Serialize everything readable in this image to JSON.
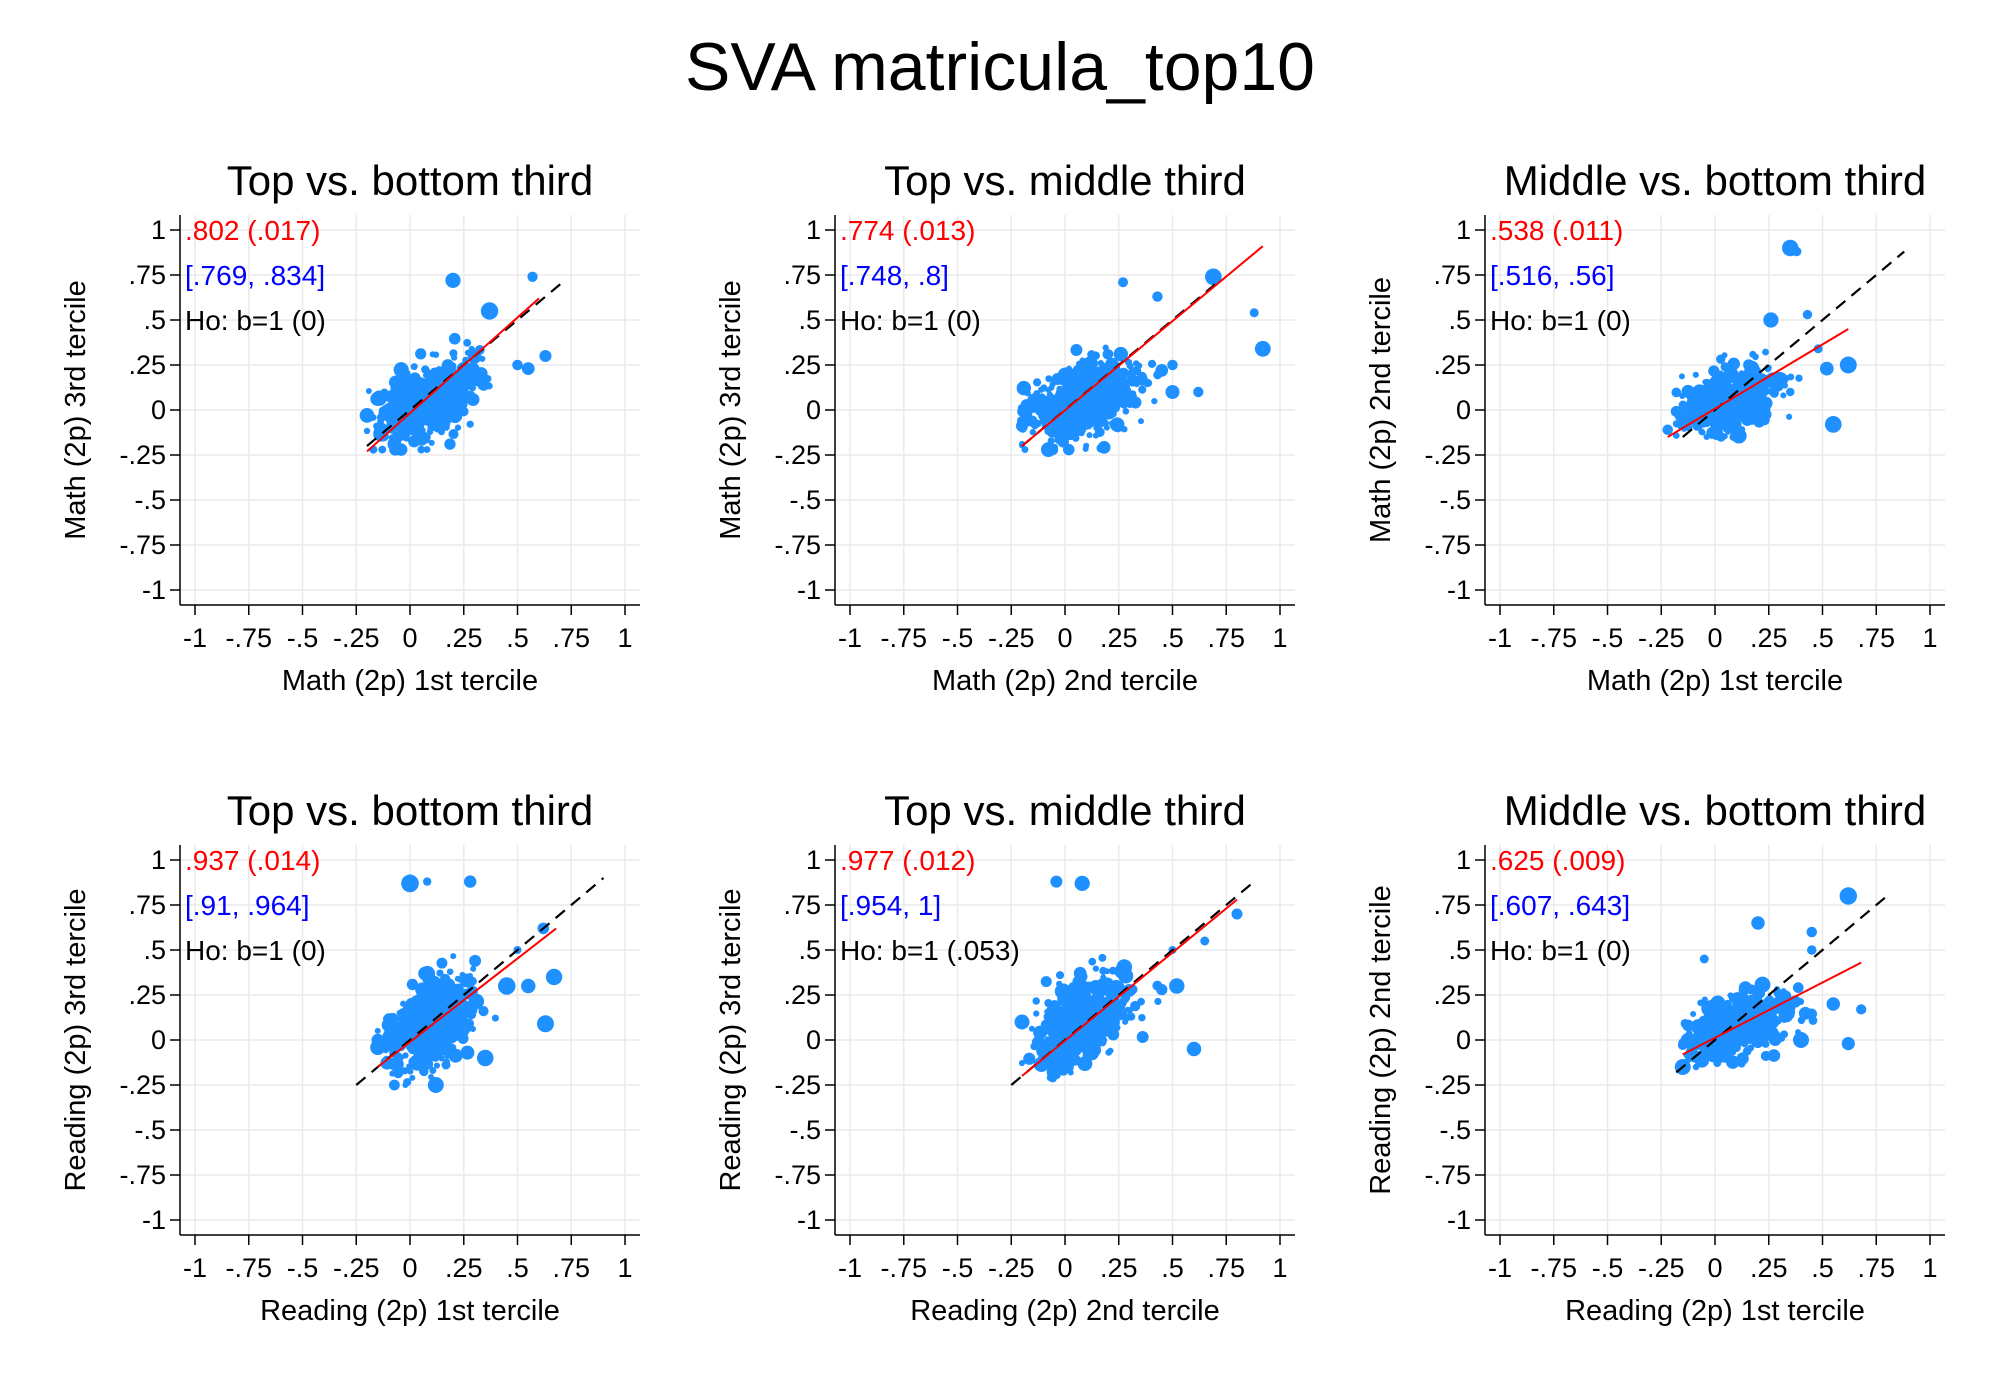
{
  "figure_title": "SVA matricula_top10",
  "colors": {
    "points": "#1e90ff",
    "fit_line": "#ff0000",
    "reference_line": "#000000",
    "coef_text": "#ff0000",
    "ci_text": "#0000ff",
    "test_text": "#000000",
    "grid": "#eaeaea"
  },
  "chart_data": [
    {
      "type": "scatter",
      "title": "Top vs. bottom third",
      "xlabel": "Math (2p) 1st tercile",
      "ylabel": "Math (2p) 3rd tercile",
      "xlim": [
        -1,
        1
      ],
      "ylim": [
        -1,
        1
      ],
      "xticks": [
        "-1",
        "-.75",
        "-.5",
        "-.25",
        "0",
        ".25",
        ".5",
        ".75",
        "1"
      ],
      "yticks": [
        "1",
        ".75",
        ".5",
        ".25",
        "0",
        "-.25",
        "-.5",
        "-.75",
        "-1"
      ],
      "annotations": {
        "coef": ".802 (.017)",
        "ci": "[.769, .834]",
        "test": "Ho: b=1 (0)"
      },
      "cloud": {
        "cx": 0.08,
        "cy": 0.05,
        "sx": 0.11,
        "sy": 0.1,
        "n": 520,
        "xmin": -0.2,
        "xmax": 0.6,
        "ymin": -0.22,
        "ymax": 0.55,
        "seed": 11,
        "slope": 0.8
      },
      "extra_points": [
        [
          -0.2,
          -0.03
        ],
        [
          0.37,
          0.55
        ],
        [
          0.57,
          0.74
        ],
        [
          0.63,
          0.3
        ],
        [
          0.2,
          0.72
        ],
        [
          0.5,
          0.25
        ],
        [
          0.55,
          0.23
        ]
      ],
      "fit_line": [
        [
          -0.2,
          -0.23
        ],
        [
          0.6,
          0.62
        ]
      ],
      "reference_line": [
        [
          -0.2,
          -0.2
        ],
        [
          0.7,
          0.7
        ]
      ],
      "grid": true
    },
    {
      "type": "scatter",
      "title": "Top vs. middle third",
      "xlabel": "Math (2p) 2nd tercile",
      "ylabel": "Math (2p) 3rd tercile",
      "xlim": [
        -1,
        1
      ],
      "ylim": [
        -1,
        1
      ],
      "xticks": [
        "-1",
        "-.75",
        "-.5",
        "-.25",
        "0",
        ".25",
        ".5",
        ".75",
        "1"
      ],
      "yticks": [
        "1",
        ".75",
        ".5",
        ".25",
        "0",
        "-.25",
        "-.5",
        "-.75",
        "-1"
      ],
      "annotations": {
        "coef": ".774 (.013)",
        "ci": "[.748, .8]",
        "test": "Ho: b=1 (0)"
      },
      "cloud": {
        "cx": 0.08,
        "cy": 0.05,
        "sx": 0.13,
        "sy": 0.1,
        "n": 600,
        "xmin": -0.2,
        "xmax": 0.55,
        "ymin": -0.22,
        "ymax": 0.5,
        "seed": 23,
        "slope": 0.75
      },
      "extra_points": [
        [
          0.27,
          0.71
        ],
        [
          0.43,
          0.63
        ],
        [
          0.69,
          0.74
        ],
        [
          0.88,
          0.54
        ],
        [
          0.92,
          0.34
        ],
        [
          0.62,
          0.1
        ],
        [
          0.5,
          0.1
        ],
        [
          0.5,
          0.25
        ],
        [
          0.45,
          0.22
        ]
      ],
      "fit_line": [
        [
          -0.2,
          -0.2
        ],
        [
          0.92,
          0.91
        ]
      ],
      "reference_line": [
        [
          -0.2,
          -0.2
        ],
        [
          0.7,
          0.7
        ]
      ],
      "grid": true
    },
    {
      "type": "scatter",
      "title": "Middle vs. bottom third",
      "xlabel": "Math (2p) 1st tercile",
      "ylabel": "Math (2p) 2nd tercile",
      "xlim": [
        -1,
        1
      ],
      "ylim": [
        -1,
        1
      ],
      "xticks": [
        "-1",
        "-.75",
        "-.5",
        "-.25",
        "0",
        ".25",
        ".5",
        ".75",
        "1"
      ],
      "yticks": [
        "1",
        ".75",
        ".5",
        ".25",
        "0",
        "-.25",
        "-.5",
        "-.75",
        "-1"
      ],
      "annotations": {
        "coef": ".538 (.011)",
        "ci": "[.516, .56]",
        "test": "Ho: b=1 (0)"
      },
      "cloud": {
        "cx": 0.07,
        "cy": 0.05,
        "sx": 0.11,
        "sy": 0.08,
        "n": 520,
        "xmin": -0.18,
        "xmax": 0.5,
        "ymin": -0.15,
        "ymax": 0.4,
        "seed": 37,
        "slope": 0.55
      },
      "extra_points": [
        [
          -0.22,
          -0.11
        ],
        [
          0.35,
          0.9
        ],
        [
          0.38,
          0.88
        ],
        [
          0.26,
          0.5
        ],
        [
          0.43,
          0.53
        ],
        [
          0.48,
          0.34
        ],
        [
          0.62,
          0.25
        ],
        [
          0.52,
          0.23
        ],
        [
          0.55,
          -0.08
        ],
        [
          0.35,
          0.1
        ]
      ],
      "fit_line": [
        [
          -0.22,
          -0.15
        ],
        [
          0.62,
          0.45
        ]
      ],
      "reference_line": [
        [
          -0.15,
          -0.15
        ],
        [
          0.88,
          0.88
        ]
      ],
      "grid": true
    },
    {
      "type": "scatter",
      "title": "Top vs. bottom third",
      "xlabel": "Reading (2p) 1st tercile",
      "ylabel": "Reading (2p) 3rd tercile",
      "xlim": [
        -1,
        1
      ],
      "ylim": [
        -1,
        1
      ],
      "xticks": [
        "-1",
        "-.75",
        "-.5",
        "-.25",
        "0",
        ".25",
        ".5",
        ".75",
        "1"
      ],
      "yticks": [
        "1",
        ".75",
        ".5",
        ".25",
        "0",
        "-.25",
        "-.5",
        "-.75",
        "-1"
      ],
      "annotations": {
        "coef": ".937 (.014)",
        "ci": "[.91, .964]",
        "test": "Ho: b=1 (0)"
      },
      "cloud": {
        "cx": 0.1,
        "cy": 0.1,
        "sx": 0.1,
        "sy": 0.11,
        "n": 560,
        "xmin": -0.15,
        "xmax": 0.55,
        "ymin": -0.25,
        "ymax": 0.52,
        "seed": 51,
        "slope": 0.9
      },
      "extra_points": [
        [
          0.0,
          0.87
        ],
        [
          0.08,
          0.88
        ],
        [
          0.28,
          0.88
        ],
        [
          -0.15,
          0.0
        ],
        [
          0.5,
          0.5
        ],
        [
          0.55,
          0.3
        ],
        [
          0.67,
          0.35
        ],
        [
          0.62,
          0.62
        ],
        [
          0.63,
          0.09
        ],
        [
          0.35,
          -0.1
        ],
        [
          0.45,
          0.3
        ]
      ],
      "fit_line": [
        [
          -0.15,
          -0.15
        ],
        [
          0.68,
          0.62
        ]
      ],
      "reference_line": [
        [
          -0.25,
          -0.25
        ],
        [
          0.9,
          0.9
        ]
      ],
      "grid": true
    },
    {
      "type": "scatter",
      "title": "Top vs. middle third",
      "xlabel": "Reading (2p) 2nd tercile",
      "ylabel": "Reading (2p) 3rd tercile",
      "xlim": [
        -1,
        1
      ],
      "ylim": [
        -1,
        1
      ],
      "xticks": [
        "-1",
        "-.75",
        "-.5",
        "-.25",
        "0",
        ".25",
        ".5",
        ".75",
        "1"
      ],
      "yticks": [
        "1",
        ".75",
        ".5",
        ".25",
        "0",
        "-.25",
        "-.5",
        "-.75",
        "-1"
      ],
      "annotations": {
        "coef": ".977 (.012)",
        "ci": "[.954, 1]",
        "test": "Ho: b=1 (.053)"
      },
      "cloud": {
        "cx": 0.08,
        "cy": 0.1,
        "sx": 0.1,
        "sy": 0.11,
        "n": 560,
        "xmin": -0.2,
        "xmax": 0.55,
        "ymin": -0.25,
        "ymax": 0.52,
        "seed": 67,
        "slope": 0.95
      },
      "extra_points": [
        [
          -0.04,
          0.88
        ],
        [
          0.08,
          0.87
        ],
        [
          -0.2,
          0.1
        ],
        [
          0.5,
          0.5
        ],
        [
          0.65,
          0.55
        ],
        [
          0.8,
          0.7
        ],
        [
          0.6,
          -0.05
        ],
        [
          0.45,
          0.28
        ],
        [
          0.52,
          0.3
        ]
      ],
      "fit_line": [
        [
          -0.2,
          -0.2
        ],
        [
          0.8,
          0.78
        ]
      ],
      "reference_line": [
        [
          -0.25,
          -0.25
        ],
        [
          0.88,
          0.88
        ]
      ],
      "grid": true
    },
    {
      "type": "scatter",
      "title": "Middle vs. bottom third",
      "xlabel": "Reading (2p) 1st tercile",
      "ylabel": "Reading (2p) 2nd tercile",
      "xlim": [
        -1,
        1
      ],
      "ylim": [
        -1,
        1
      ],
      "xticks": [
        "-1",
        "-.75",
        "-.5",
        "-.25",
        "0",
        ".25",
        ".5",
        ".75",
        "1"
      ],
      "yticks": [
        "1",
        ".75",
        ".5",
        ".25",
        "0",
        "-.25",
        "-.5",
        "-.75",
        "-1"
      ],
      "annotations": {
        "coef": ".625 (.009)",
        "ci": "[.607, .643]",
        "test": "Ho: b=1 (0)"
      },
      "cloud": {
        "cx": 0.1,
        "cy": 0.08,
        "sx": 0.11,
        "sy": 0.08,
        "n": 560,
        "xmin": -0.15,
        "xmax": 0.5,
        "ymin": -0.15,
        "ymax": 0.4,
        "seed": 83,
        "slope": 0.6
      },
      "extra_points": [
        [
          -0.15,
          -0.15
        ],
        [
          0.2,
          0.65
        ],
        [
          -0.05,
          0.45
        ],
        [
          0.45,
          0.6
        ],
        [
          0.62,
          0.8
        ],
        [
          0.45,
          0.5
        ],
        [
          0.68,
          0.17
        ],
        [
          0.62,
          -0.02
        ],
        [
          0.55,
          0.2
        ],
        [
          0.4,
          0.0
        ]
      ],
      "fit_line": [
        [
          -0.15,
          -0.08
        ],
        [
          0.68,
          0.43
        ]
      ],
      "reference_line": [
        [
          -0.18,
          -0.18
        ],
        [
          0.8,
          0.8
        ]
      ],
      "grid": true
    }
  ]
}
